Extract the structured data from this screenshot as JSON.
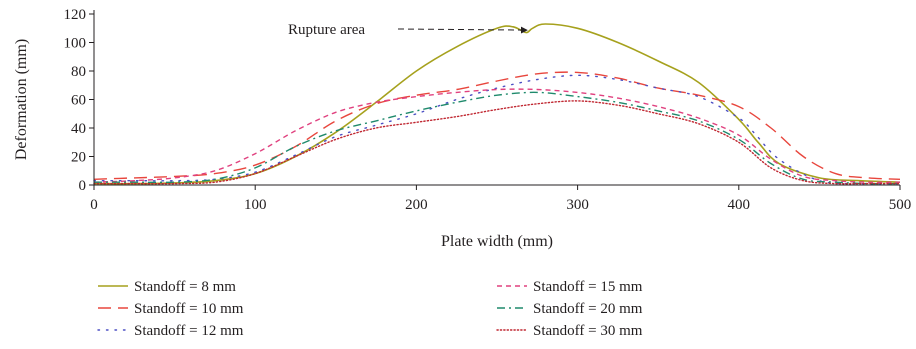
{
  "chart_data": {
    "type": "line",
    "title": "",
    "xlabel": "Plate width (mm)",
    "ylabel": "Deformation (mm)",
    "xlim": [
      0,
      500
    ],
    "ylim": [
      0,
      120
    ],
    "xticks": [
      0,
      100,
      200,
      300,
      400,
      500
    ],
    "yticks": [
      0,
      20,
      40,
      60,
      80,
      100,
      120
    ],
    "grid": false,
    "legend_position": "bottom",
    "annotation": {
      "text": "Rupture area",
      "x": 270,
      "y": 108
    },
    "series": [
      {
        "name": "Standoff = 8 mm",
        "color": "#a6a11d",
        "dash": "solid",
        "x": [
          0,
          25,
          50,
          75,
          100,
          125,
          150,
          175,
          200,
          225,
          250,
          260,
          268,
          272,
          280,
          300,
          325,
          350,
          375,
          400,
          412,
          425,
          450,
          475,
          500
        ],
        "y": [
          1,
          1,
          1.5,
          3,
          8,
          20,
          37,
          58,
          80,
          97,
          110,
          111,
          107,
          110,
          113,
          110,
          100,
          87,
          72,
          46,
          30,
          15,
          5,
          3,
          2
        ]
      },
      {
        "name": "Standoff = 10 mm",
        "color": "#e8463d",
        "dash": "long-dash",
        "x": [
          0,
          25,
          50,
          75,
          100,
          125,
          150,
          175,
          200,
          225,
          250,
          275,
          300,
          325,
          350,
          375,
          400,
          420,
          440,
          460,
          480,
          500
        ],
        "y": [
          4,
          5,
          6,
          8,
          14,
          27,
          45,
          57,
          63,
          67,
          73,
          78,
          79,
          75,
          68,
          63,
          55,
          40,
          20,
          8,
          5,
          4
        ]
      },
      {
        "name": "Standoff = 12 mm",
        "color": "#4c4fc4",
        "dash": "dot",
        "x": [
          0,
          25,
          50,
          75,
          100,
          125,
          150,
          175,
          200,
          225,
          250,
          275,
          300,
          325,
          350,
          375,
          400,
          410,
          425,
          450,
          475,
          500
        ],
        "y": [
          3,
          3,
          3,
          4,
          9,
          21,
          34,
          42,
          50,
          60,
          68,
          74,
          77,
          74,
          68,
          62,
          47,
          36,
          18,
          3,
          1,
          1
        ]
      },
      {
        "name": "Standoff = 15 mm",
        "color": "#e0417f",
        "dash": "short-dash",
        "x": [
          0,
          25,
          50,
          75,
          100,
          125,
          150,
          175,
          200,
          225,
          250,
          275,
          300,
          325,
          350,
          375,
          400,
          420,
          440,
          460,
          480,
          500
        ],
        "y": [
          2,
          3,
          5,
          10,
          22,
          38,
          51,
          58,
          62,
          65,
          67,
          67,
          65,
          61,
          55,
          47,
          35,
          18,
          6,
          3,
          2,
          2
        ]
      },
      {
        "name": "Standoff = 20 mm",
        "color": "#1f8a6c",
        "dash": "dash-dot",
        "x": [
          0,
          25,
          50,
          75,
          100,
          125,
          150,
          175,
          200,
          225,
          250,
          275,
          300,
          325,
          350,
          375,
          400,
          420,
          440,
          460,
          480,
          500
        ],
        "y": [
          2,
          2,
          2,
          4,
          12,
          27,
          38,
          45,
          52,
          58,
          63,
          65,
          62,
          58,
          52,
          45,
          32,
          15,
          4,
          2,
          1,
          1
        ]
      },
      {
        "name": "Standoff = 30 mm",
        "color": "#c02731",
        "dash": "fine-dot",
        "x": [
          0,
          25,
          50,
          75,
          100,
          125,
          150,
          175,
          200,
          225,
          250,
          275,
          300,
          325,
          350,
          375,
          400,
          420,
          440,
          460,
          480,
          500
        ],
        "y": [
          1,
          1,
          1,
          2,
          8,
          20,
          32,
          40,
          44,
          48,
          53,
          57,
          59,
          56,
          50,
          43,
          30,
          12,
          3,
          1,
          1,
          1
        ]
      }
    ]
  }
}
